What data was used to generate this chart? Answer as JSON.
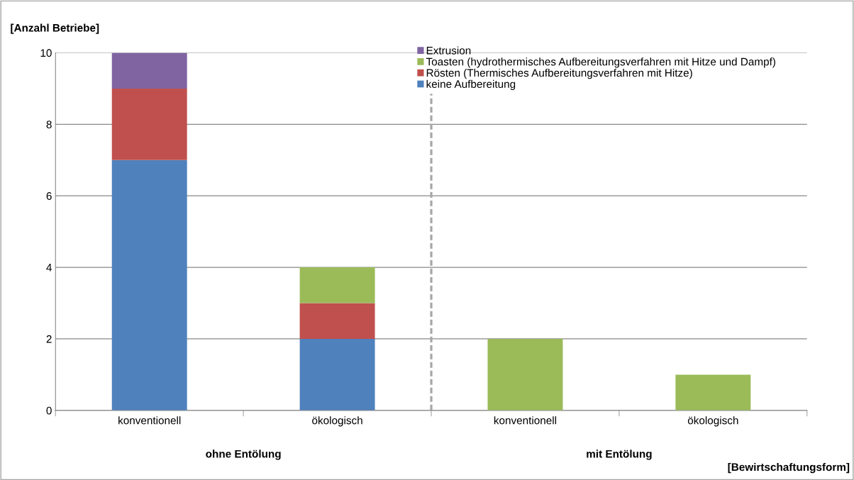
{
  "chart_data": {
    "type": "bar",
    "stacked": true,
    "ylabel": "[Anzahl Betriebe]",
    "xlabel": "[Bewirtschaftungsform]",
    "categories": [
      "konventionell",
      "ökologisch",
      "konventionell",
      "ökologisch"
    ],
    "series": [
      {
        "name": "keine Aufbereitung",
        "color": "#4f81bd",
        "values": [
          7,
          2,
          0,
          0
        ]
      },
      {
        "name": "Rösten (Thermisches Aufbereitungsverfahren mit Hitze)",
        "color": "#c0504d",
        "values": [
          2,
          1,
          0,
          0
        ]
      },
      {
        "name": "Toasten (hydrothermisches Aufbereitungsverfahren mit Hitze und Dampf)",
        "color": "#9bbb59",
        "values": [
          0,
          1,
          2,
          1
        ]
      },
      {
        "name": "Extrusion",
        "color": "#8064a2",
        "values": [
          1,
          0,
          0,
          0
        ]
      }
    ],
    "annotations": [
      {
        "text": "ohne Entölung"
      },
      {
        "text": "mit Entölung"
      }
    ],
    "ylim": [
      0,
      10
    ],
    "yticks": [
      0,
      2,
      4,
      6,
      8,
      10
    ],
    "grid": "y",
    "legend": "top"
  }
}
